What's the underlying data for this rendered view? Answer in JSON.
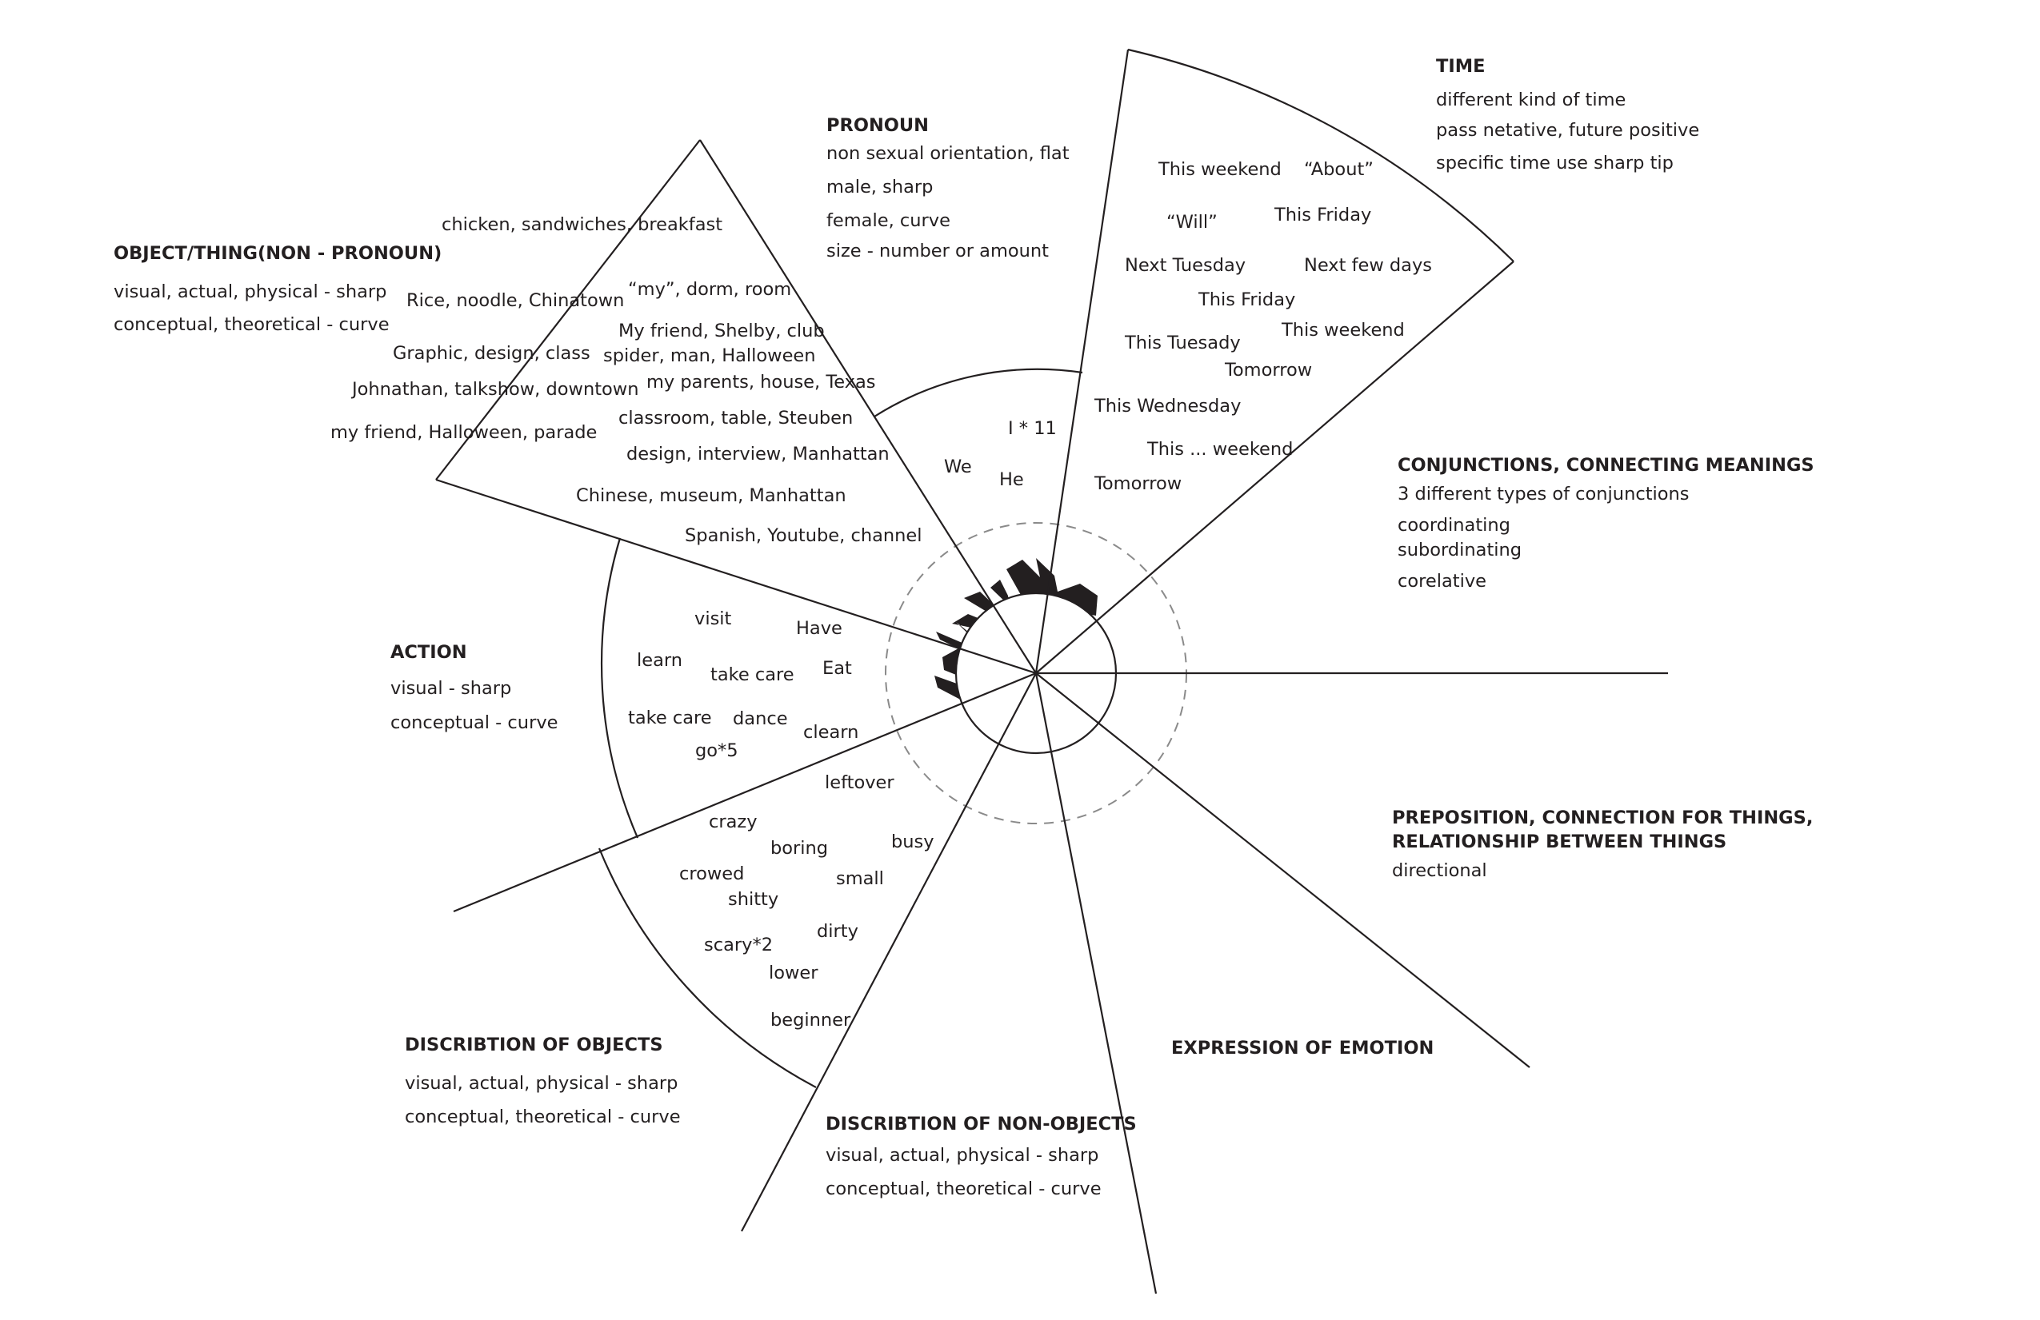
{
  "categories": {
    "time": {
      "title": "TIME",
      "notes": [
        "different kind of time",
        "pass netative, future positive",
        "specific time use sharp tip"
      ],
      "words": [
        "This weekend",
        "“About”",
        "“Will”",
        "This Friday",
        "Next Tuesday",
        "Next few days",
        "This Friday",
        "This weekend",
        "This Tuesady",
        "Tomorrow",
        "This Wednesday",
        "This ... weekend",
        "Tomorrow"
      ]
    },
    "pronoun": {
      "title": "PRONOUN",
      "notes": [
        "non sexual orientation, flat",
        "male, sharp",
        "female, curve",
        "size - number or amount"
      ],
      "words": [
        "I * 11",
        "We",
        "He"
      ]
    },
    "object": {
      "title": "OBJECT/THING(NON - PRONOUN)",
      "notes": [
        "visual, actual, physical - sharp",
        "conceptual, theoretical - curve"
      ],
      "words": [
        "chicken, sandwiches, breakfast",
        "Rice, noodle, Chinatown",
        "“my”, dorm, room",
        "My friend, Shelby, club",
        "Graphic, design, class",
        "spider, man, Halloween",
        "Johnathan, talkshow, downtown",
        "my parents, house, Texas",
        "classroom, table, Steuben",
        "my friend, Halloween, parade",
        "design, interview, Manhattan",
        "Chinese, museum, Manhattan",
        "Spanish, Youtube, channel"
      ]
    },
    "conjunctions": {
      "title": "CONJUNCTIONS, CONNECTING MEANINGS",
      "notes": [
        "3 different types of conjunctions",
        "coordinating",
        "subordinating",
        "corelative"
      ]
    },
    "action": {
      "title": "ACTION",
      "notes": [
        "visual - sharp",
        "conceptual - curve"
      ],
      "words": [
        "visit",
        "Have",
        "learn",
        "take care",
        "Eat",
        "take care",
        "dance",
        "clearn",
        "go*5"
      ]
    },
    "preposition": {
      "title_lines": [
        "PREPOSITION, CONNECTION FOR THINGS,",
        "RELATIONSHIP BETWEEN THINGS"
      ],
      "notes": [
        "directional"
      ]
    },
    "desc_objects": {
      "title": "DISCRIBTION OF OBJECTS",
      "notes": [
        "visual, actual, physical - sharp",
        "conceptual, theoretical - curve"
      ],
      "words": [
        "leftover",
        "crazy",
        "boring",
        "busy",
        "crowed",
        "small",
        "shitty",
        "dirty",
        "scary*2",
        "lower",
        "beginner"
      ]
    },
    "emotion": {
      "title": "EXPRESSION OF EMOTION"
    },
    "desc_nonobjects": {
      "title": "DISCRIBTION OF NON-OBJECTS",
      "notes": [
        "visual, actual, physical - sharp",
        "conceptual, theoretical - curve"
      ]
    }
  },
  "colors": {
    "ink": "#231f20",
    "dashed_ring": "#8a8a8a",
    "background": "#ffffff"
  }
}
